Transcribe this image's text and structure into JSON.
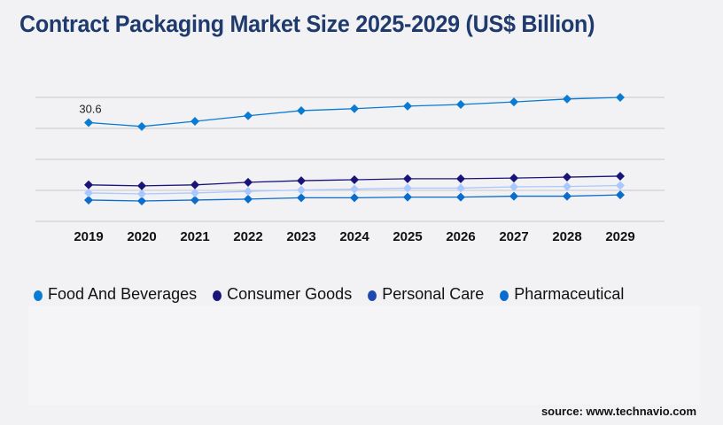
{
  "title": "Contract Packaging Market Size 2025-2029 (US$ Billion)",
  "source": "source: www.technavio.com",
  "chart_data": {
    "type": "line",
    "title": "Contract Packaging Market Size 2025-2029 (US$ Billion)",
    "categories": [
      "2019",
      "2020",
      "2021",
      "2022",
      "2023",
      "2024",
      "2025",
      "2026",
      "2027",
      "2028",
      "2029"
    ],
    "ylim": [
      0,
      38.4
    ],
    "grid": true,
    "legend": "bottom",
    "annotations": [
      {
        "category": "2019",
        "series": "Food And Beverages",
        "label": "30.6"
      }
    ],
    "series": [
      {
        "name": "Food And Beverages",
        "color": "#0a7bd2",
        "legend_color": "#0a7bd2",
        "values": [
          30.6,
          29.4,
          31.0,
          32.7,
          34.3,
          34.9,
          35.7,
          36.2,
          37.0,
          37.9,
          38.4
        ]
      },
      {
        "name": "Consumer Goods",
        "color": "#1a1478",
        "legend_color": "#1a1478",
        "values": [
          11.3,
          11.0,
          11.3,
          12.1,
          12.6,
          12.9,
          13.2,
          13.2,
          13.4,
          13.7,
          14.0
        ]
      },
      {
        "name": "Personal Care",
        "color": "#a8c8ff",
        "legend_color": "#1f48b0",
        "values": [
          8.8,
          8.5,
          8.8,
          9.3,
          9.7,
          10.0,
          10.3,
          10.3,
          10.7,
          10.8,
          11.1
        ]
      },
      {
        "name": "Pharmaceutical",
        "color": "#0a6ccc",
        "legend_color": "#0a6ccc",
        "values": [
          6.6,
          6.3,
          6.6,
          6.9,
          7.3,
          7.3,
          7.5,
          7.5,
          7.8,
          7.8,
          8.2
        ]
      }
    ]
  }
}
